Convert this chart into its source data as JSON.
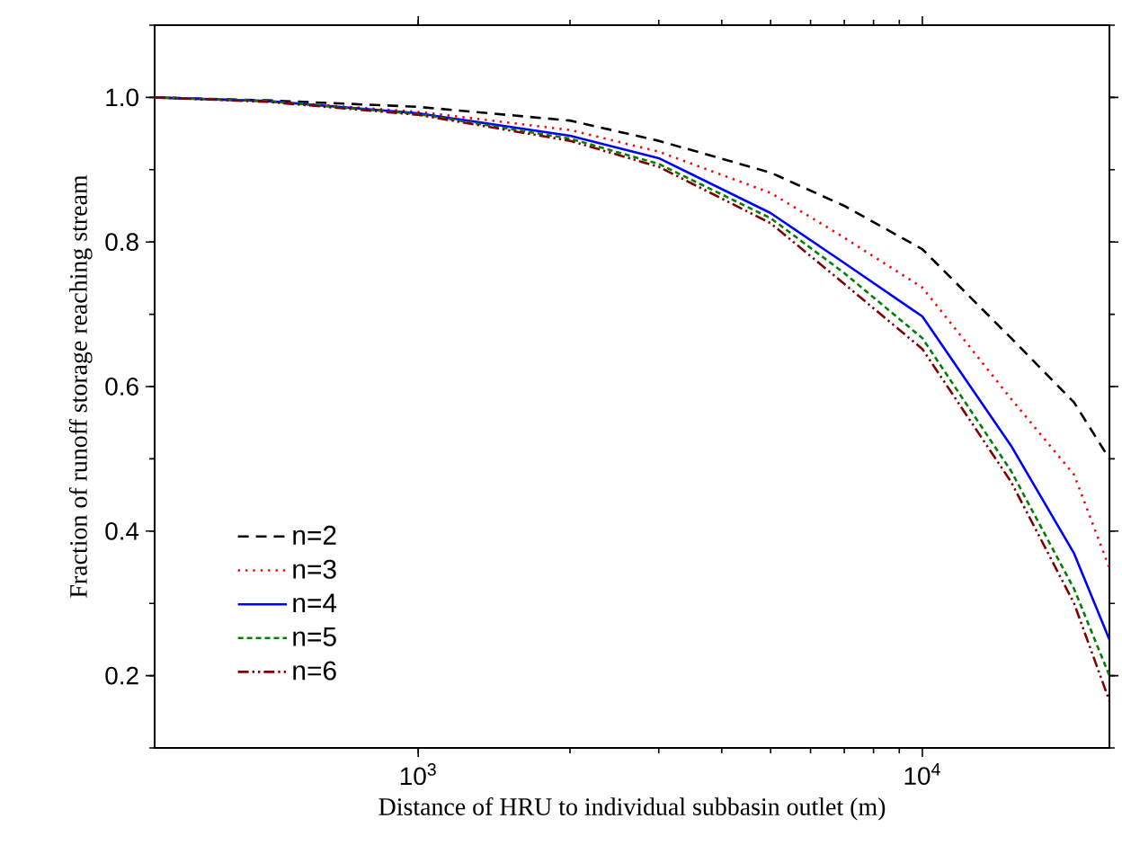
{
  "chart_data": {
    "type": "line",
    "xlabel": "Distance of HRU to individual subbasin outlet (m)",
    "ylabel": "Fraction of runoff storage reaching stream",
    "x": [
      300,
      500,
      1000,
      2000,
      3000,
      5000,
      7000,
      10000,
      15000,
      20000,
      23500
    ],
    "series": [
      {
        "name": "n=2",
        "color": "#000000",
        "line_style": "dashed",
        "values": [
          1.0,
          0.996,
          0.987,
          0.968,
          0.94,
          0.896,
          0.85,
          0.79,
          0.667,
          0.578,
          0.5
        ]
      },
      {
        "name": "n=3",
        "color": "#ff0000",
        "line_style": "dotted",
        "values": [
          1.0,
          0.995,
          0.98,
          0.955,
          0.925,
          0.868,
          0.806,
          0.737,
          0.583,
          0.478,
          0.349
        ]
      },
      {
        "name": "n=4",
        "color": "#0000ff",
        "line_style": "solid",
        "values": [
          1.0,
          0.995,
          0.978,
          0.947,
          0.916,
          0.84,
          0.771,
          0.697,
          0.518,
          0.369,
          0.25
        ]
      },
      {
        "name": "n=5",
        "color": "#008000",
        "line_style": "densely dashed",
        "values": [
          1.0,
          0.995,
          0.977,
          0.943,
          0.908,
          0.833,
          0.757,
          0.667,
          0.483,
          0.32,
          0.2
        ]
      },
      {
        "name": "n=6",
        "color": "#800000",
        "line_style": "dashdotdotted",
        "values": [
          1.0,
          0.994,
          0.976,
          0.94,
          0.904,
          0.826,
          0.742,
          0.652,
          0.468,
          0.3,
          0.165
        ]
      }
    ],
    "log": "x",
    "xlim": [
      300,
      23500
    ],
    "xticks": [
      {
        "value": 1000,
        "label": "10$^{3}$"
      },
      {
        "value": 10000,
        "label": "10$^{4}$"
      }
    ],
    "ylim": [
      0.1,
      1.1
    ],
    "yticks": [
      0.2,
      0.4,
      0.6,
      0.8,
      {
        "value": 1.0,
        "label": "1.0"
      }
    ],
    "legend": "bottom left"
  }
}
